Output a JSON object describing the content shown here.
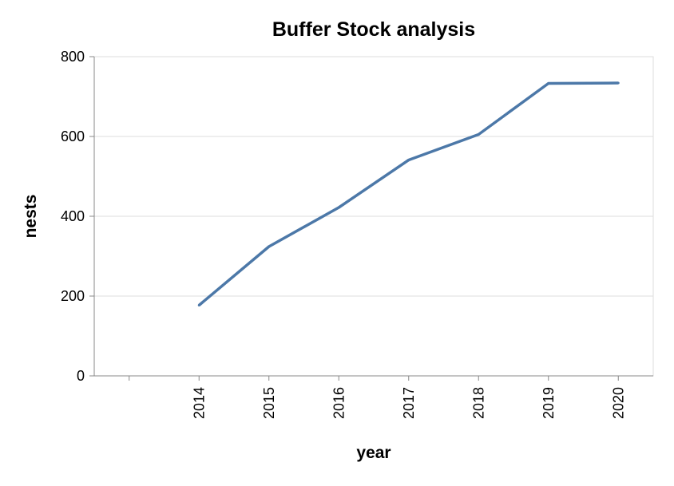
{
  "chart_data": {
    "type": "line",
    "title": "Buffer Stock analysis",
    "xlabel": "year",
    "ylabel": "nests",
    "categories": [
      "",
      "2014",
      "2015",
      "2016",
      "2017",
      "2018",
      "2019",
      "2020"
    ],
    "x": [
      2014,
      2015,
      2016,
      2017,
      2018,
      2019,
      2020
    ],
    "values": [
      177,
      324,
      422,
      541,
      605,
      733,
      734
    ],
    "ylim": [
      0,
      800
    ],
    "yticks": [
      0,
      200,
      400,
      600,
      800
    ],
    "grid": true,
    "line_color": "#4c78a8"
  }
}
